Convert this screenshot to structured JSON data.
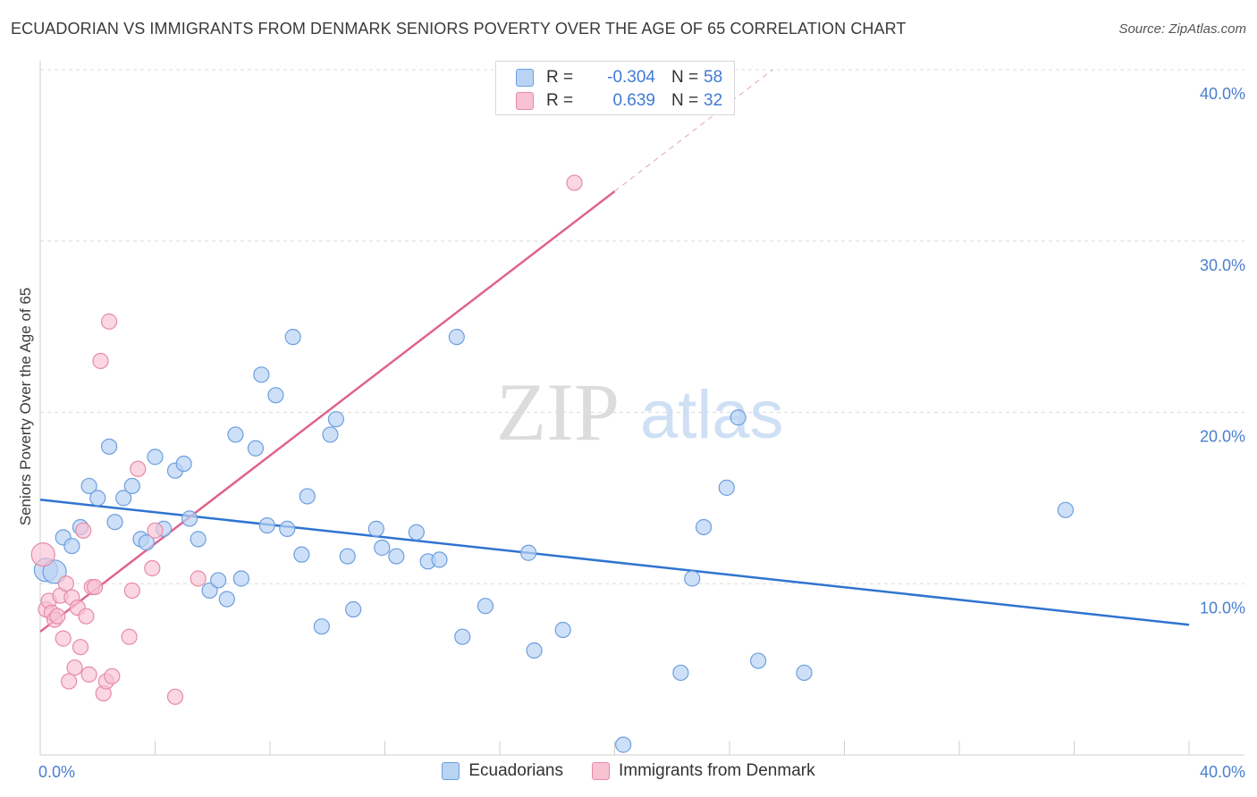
{
  "header": {
    "title": "ECUADORIAN VS IMMIGRANTS FROM DENMARK SENIORS POVERTY OVER THE AGE OF 65 CORRELATION CHART",
    "source": "Source: ZipAtlas.com"
  },
  "watermark": {
    "zip": "ZIP",
    "atlas": "atlas"
  },
  "legend_top": {
    "rows": [
      {
        "r_label": "R =",
        "r_value": "-0.304",
        "n_label": "N =",
        "n_value": "58"
      },
      {
        "r_label": "R =",
        "r_value": "0.639",
        "n_label": "N =",
        "n_value": "32"
      }
    ]
  },
  "legend_bottom": {
    "items": [
      {
        "label": "Ecuadorians"
      },
      {
        "label": "Immigrants from Denmark"
      }
    ]
  },
  "colors": {
    "blue_fill": "#b9d3f3",
    "blue_stroke": "#6c9ee0",
    "blue_line": "#2f74d0",
    "pink_fill": "#f7c2d2",
    "pink_stroke": "#e88aa8",
    "pink_line": "#e0638d",
    "grid": "#dcdcdc",
    "tick_text": "#4a7fcf"
  },
  "chart_data": {
    "type": "scatter",
    "xlabel": "",
    "ylabel": "Seniors Poverty Over the Age of 65",
    "xlim": [
      0,
      40
    ],
    "ylim": [
      0,
      40
    ],
    "x_tick_labels": [
      "0.0%",
      "40.0%"
    ],
    "y_tick_labels": [
      "10.0%",
      "20.0%",
      "30.0%",
      "40.0%"
    ],
    "y_ticks": [
      10,
      20,
      30,
      40
    ],
    "grid": "horizontal dashed",
    "legend_placement": "top-center and bottom",
    "series": [
      {
        "name": "Ecuadorians",
        "color": "blue",
        "points": [
          [
            0.2,
            10.8
          ],
          [
            0.5,
            10.7
          ],
          [
            0.8,
            12.7
          ],
          [
            1.1,
            12.2
          ],
          [
            1.4,
            13.3
          ],
          [
            1.7,
            15.7
          ],
          [
            2.0,
            15.0
          ],
          [
            2.4,
            18.0
          ],
          [
            2.6,
            13.6
          ],
          [
            2.9,
            15.0
          ],
          [
            3.2,
            15.7
          ],
          [
            3.5,
            12.6
          ],
          [
            3.7,
            12.4
          ],
          [
            4.0,
            17.4
          ],
          [
            4.3,
            13.2
          ],
          [
            4.7,
            16.6
          ],
          [
            5.0,
            17.0
          ],
          [
            5.2,
            13.8
          ],
          [
            5.5,
            12.6
          ],
          [
            5.9,
            9.6
          ],
          [
            6.2,
            10.2
          ],
          [
            6.5,
            9.1
          ],
          [
            6.8,
            18.7
          ],
          [
            7.0,
            10.3
          ],
          [
            7.5,
            17.9
          ],
          [
            7.7,
            22.2
          ],
          [
            7.9,
            13.4
          ],
          [
            8.2,
            21.0
          ],
          [
            8.6,
            13.2
          ],
          [
            8.8,
            24.4
          ],
          [
            9.1,
            11.7
          ],
          [
            9.3,
            15.1
          ],
          [
            9.8,
            7.5
          ],
          [
            10.1,
            18.7
          ],
          [
            10.3,
            19.6
          ],
          [
            10.7,
            11.6
          ],
          [
            10.9,
            8.5
          ],
          [
            11.7,
            13.2
          ],
          [
            11.9,
            12.1
          ],
          [
            12.4,
            11.6
          ],
          [
            13.1,
            13.0
          ],
          [
            13.5,
            11.3
          ],
          [
            13.9,
            11.4
          ],
          [
            14.5,
            24.4
          ],
          [
            14.7,
            6.9
          ],
          [
            15.5,
            8.7
          ],
          [
            17.0,
            11.8
          ],
          [
            17.2,
            6.1
          ],
          [
            18.2,
            7.3
          ],
          [
            20.3,
            0.6
          ],
          [
            22.3,
            4.8
          ],
          [
            22.7,
            10.3
          ],
          [
            23.1,
            13.3
          ],
          [
            23.9,
            15.6
          ],
          [
            24.3,
            19.7
          ],
          [
            25.0,
            5.5
          ],
          [
            26.6,
            4.8
          ],
          [
            35.7,
            14.3
          ]
        ],
        "trend": {
          "x": [
            0,
            40
          ],
          "y": [
            14.9,
            7.6
          ]
        }
      },
      {
        "name": "Immigrants from Denmark",
        "color": "pink",
        "points": [
          [
            0.1,
            11.7
          ],
          [
            0.2,
            8.5
          ],
          [
            0.3,
            9.0
          ],
          [
            0.4,
            8.3
          ],
          [
            0.5,
            7.9
          ],
          [
            0.6,
            8.1
          ],
          [
            0.7,
            9.3
          ],
          [
            0.8,
            6.8
          ],
          [
            0.9,
            10.0
          ],
          [
            1.0,
            4.3
          ],
          [
            1.1,
            9.2
          ],
          [
            1.2,
            5.1
          ],
          [
            1.3,
            8.6
          ],
          [
            1.4,
            6.3
          ],
          [
            1.5,
            13.1
          ],
          [
            1.6,
            8.1
          ],
          [
            1.7,
            4.7
          ],
          [
            1.8,
            9.8
          ],
          [
            1.9,
            9.8
          ],
          [
            2.1,
            23.0
          ],
          [
            2.2,
            3.6
          ],
          [
            2.3,
            4.3
          ],
          [
            2.4,
            25.3
          ],
          [
            2.5,
            4.6
          ],
          [
            3.1,
            6.9
          ],
          [
            3.2,
            9.6
          ],
          [
            3.4,
            16.7
          ],
          [
            3.9,
            10.9
          ],
          [
            4.0,
            13.1
          ],
          [
            4.7,
            3.4
          ],
          [
            5.5,
            10.3
          ],
          [
            18.6,
            33.4
          ]
        ],
        "trend": {
          "x": [
            0,
            20
          ],
          "y": [
            7.2,
            32.9
          ]
        },
        "trend_extension": {
          "x": [
            20,
            25.5
          ],
          "y": [
            32.9,
            40.0
          ]
        }
      }
    ]
  }
}
